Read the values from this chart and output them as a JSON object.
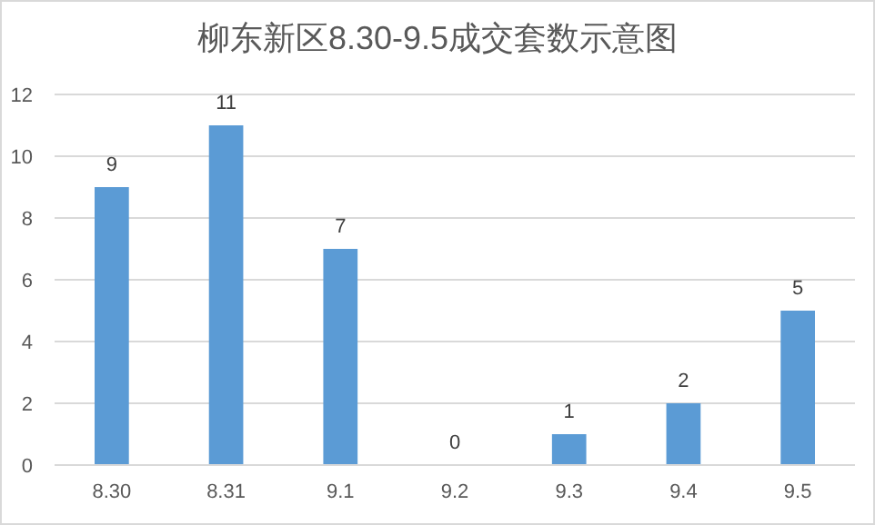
{
  "chart_data": {
    "type": "bar",
    "title": "柳东新区8.30-9.5成交套数示意图",
    "categories": [
      "8.30",
      "8.31",
      "9.1",
      "9.2",
      "9.3",
      "9.4",
      "9.5"
    ],
    "values": [
      9,
      11,
      7,
      0,
      1,
      2,
      5
    ],
    "color": "#5b9bd5",
    "ylim": [
      0,
      12
    ],
    "yticks": [
      0,
      2,
      4,
      6,
      8,
      10,
      12
    ],
    "grid": "y",
    "data_labels": true
  }
}
